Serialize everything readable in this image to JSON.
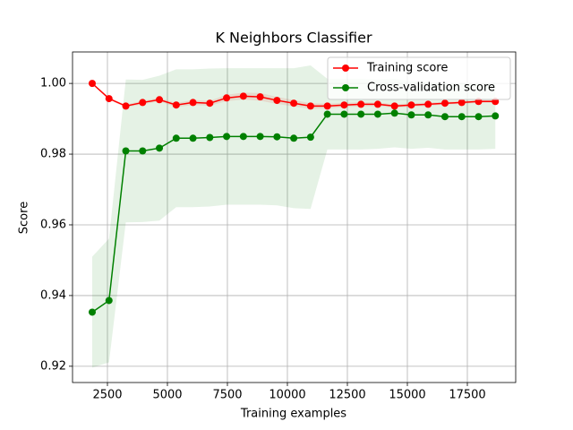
{
  "chart_data": {
    "type": "line",
    "title": "K Neighbors Classifier",
    "xlabel": "Training examples",
    "ylabel": "Score",
    "x": [
      1866,
      2566,
      3266,
      3966,
      4666,
      5366,
      6066,
      6766,
      7466,
      8166,
      8866,
      9566,
      10266,
      10966,
      11666,
      12366,
      13066,
      13766,
      14466,
      15166,
      15866,
      16566,
      17266,
      17966,
      18666
    ],
    "series": [
      {
        "name": "Training score",
        "color": "#ff0000",
        "values": [
          1.0,
          0.9957,
          0.9936,
          0.9946,
          0.9954,
          0.9939,
          0.9946,
          0.9944,
          0.9959,
          0.9964,
          0.9962,
          0.9952,
          0.9944,
          0.9936,
          0.9936,
          0.9939,
          0.9941,
          0.9941,
          0.9936,
          0.9939,
          0.9941,
          0.9944,
          0.9946,
          0.9949,
          0.9949
        ],
        "std": [
          0.0,
          0.0004,
          0.0004,
          0.0005,
          0.0005,
          0.0006,
          0.0007,
          0.0007,
          0.0009,
          0.001,
          0.0011,
          0.001,
          0.0009,
          0.0008,
          0.0007,
          0.0006,
          0.0006,
          0.0005,
          0.0005,
          0.0005,
          0.0005,
          0.0004,
          0.0004,
          0.0004,
          0.0004
        ]
      },
      {
        "name": "Cross-validation score",
        "color": "#008000",
        "values": [
          0.9353,
          0.9386,
          0.9809,
          0.9809,
          0.9817,
          0.9845,
          0.9845,
          0.9847,
          0.985,
          0.985,
          0.985,
          0.9849,
          0.9845,
          0.9848,
          0.9913,
          0.9913,
          0.9913,
          0.9913,
          0.9916,
          0.9911,
          0.9911,
          0.9906,
          0.9906,
          0.9906,
          0.9908
        ],
        "std": [
          0.0157,
          0.0175,
          0.0202,
          0.0201,
          0.0205,
          0.0195,
          0.0195,
          0.0195,
          0.0193,
          0.0193,
          0.0193,
          0.0194,
          0.0198,
          0.0203,
          0.01,
          0.01,
          0.01,
          0.0098,
          0.0097,
          0.0096,
          0.0093,
          0.0093,
          0.0093,
          0.0093,
          0.0093
        ]
      }
    ],
    "xlim": [
      1045,
      19515
    ],
    "xticks": [
      2500,
      5000,
      7500,
      10000,
      12500,
      15000,
      17500
    ],
    "ylim": [
      0.9154,
      1.0089
    ],
    "yticks": [
      0.92,
      0.94,
      0.96,
      0.98,
      {
        "value": 1.0,
        "label": "1.00"
      }
    ],
    "grid": true,
    "legend": "upper right"
  }
}
